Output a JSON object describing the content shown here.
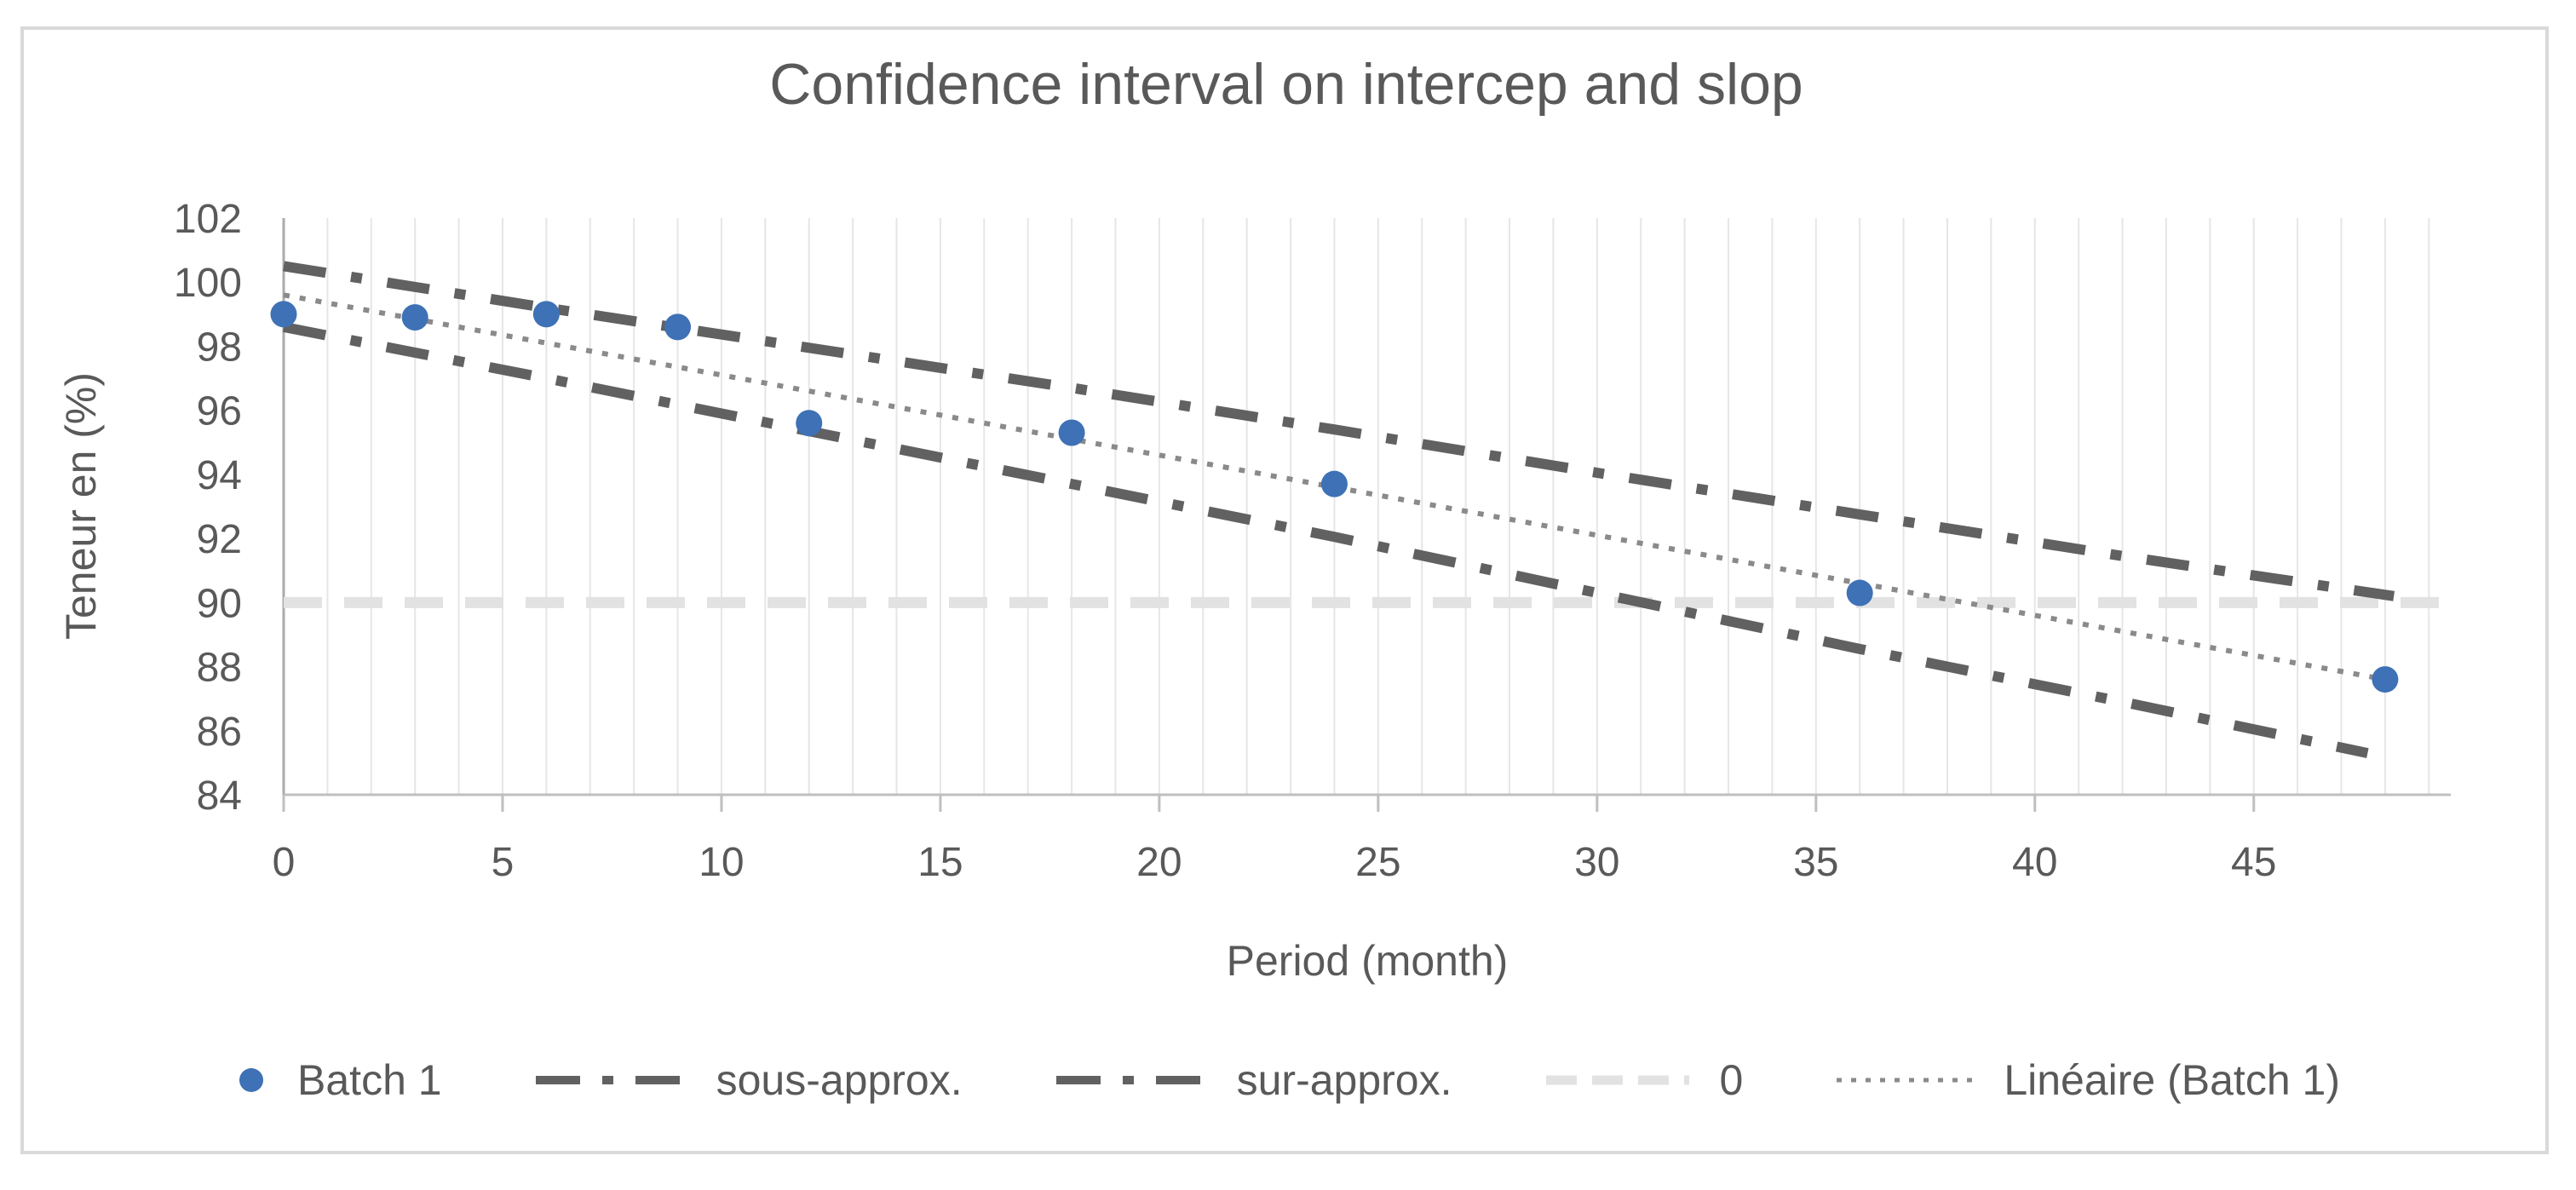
{
  "chart_data": {
    "type": "scatter",
    "title": "Confidence interval on intercep and slop",
    "xlabel": "Period (month)",
    "ylabel": "Teneur en (%)",
    "xlim": [
      0,
      49.5
    ],
    "ylim": [
      84,
      102
    ],
    "x_ticks": [
      0,
      5,
      10,
      15,
      20,
      25,
      30,
      35,
      40,
      45
    ],
    "y_ticks": [
      102,
      100,
      98,
      96,
      94,
      92,
      90,
      88,
      86,
      84
    ],
    "grid": "vertical minor gridlines every 1 month, no horizontal gridlines",
    "legend_position": "bottom",
    "series": [
      {
        "name": "Batch 1",
        "kind": "points",
        "legend_marker": "dot",
        "color": "#3E71B5",
        "z": 5,
        "points": [
          [
            0,
            99.0
          ],
          [
            3,
            98.9
          ],
          [
            6,
            99.0
          ],
          [
            9,
            98.6
          ],
          [
            12,
            95.6
          ],
          [
            18,
            95.3
          ],
          [
            24,
            93.7
          ],
          [
            36,
            90.3
          ],
          [
            48,
            87.6
          ]
        ]
      },
      {
        "name": "sous-approx.",
        "kind": "line",
        "legend_marker": "dash-dot",
        "line_style": "dash-dot",
        "color": "#616161",
        "z": 2,
        "points": [
          [
            0,
            98.6
          ],
          [
            6,
            97.0
          ],
          [
            12,
            95.35
          ],
          [
            18,
            93.7
          ],
          [
            24,
            92.05
          ],
          [
            30,
            90.3
          ],
          [
            36,
            88.55
          ],
          [
            42,
            86.9
          ],
          [
            47.6,
            85.3
          ]
        ]
      },
      {
        "name": "sur-approx.",
        "kind": "line",
        "legend_marker": "dash-dot",
        "line_style": "dash-dot",
        "color": "#616161",
        "z": 3,
        "points": [
          [
            0,
            100.5
          ],
          [
            6,
            99.2
          ],
          [
            12,
            97.95
          ],
          [
            18,
            96.7
          ],
          [
            24,
            95.4
          ],
          [
            30,
            94.05
          ],
          [
            36,
            92.75
          ],
          [
            42,
            91.45
          ],
          [
            48.2,
            90.2
          ]
        ]
      },
      {
        "name": "0",
        "kind": "line",
        "legend_marker": "light-dash",
        "line_style": "light-dash",
        "color": "#E2E2E2",
        "z": 1,
        "points": [
          [
            0,
            90
          ],
          [
            49.4,
            90
          ]
        ]
      },
      {
        "name": "Linéaire (Batch 1)",
        "kind": "line",
        "legend_marker": "dotted",
        "line_style": "dotted",
        "color": "#8A8A8A",
        "z": 4,
        "points": [
          [
            0,
            99.6
          ],
          [
            48,
            87.6
          ]
        ]
      }
    ]
  },
  "colors": {
    "text": "#595959",
    "gridline": "#E6E6E6",
    "x_axis_line": "#BFBFBF",
    "y_axis_line": "#ABABAB",
    "frame_border": "#D9D9D9",
    "point_blue": "#3E71B5",
    "band_gray": "#616161",
    "trend_gray": "#8A8A8A",
    "zero_line_gray": "#E2E2E2"
  }
}
